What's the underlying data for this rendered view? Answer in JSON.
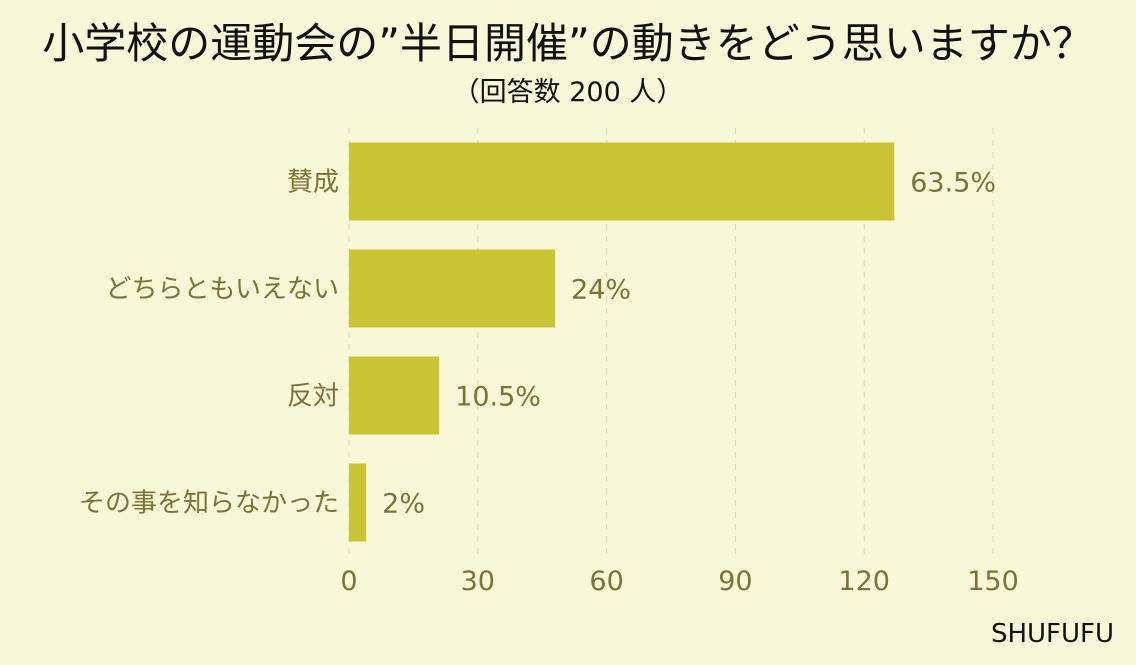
{
  "chart_data": {
    "type": "bar",
    "title": "小学校の運動会の”半日開催”の動きをどう思いますか？",
    "subtitle": "（回答数 200 人）",
    "categories": [
      "賛成",
      "どちらともいえない",
      "反対",
      "その事を知らなかった"
    ],
    "values": [
      127,
      48,
      21,
      4
    ],
    "data_labels": [
      "63.5%",
      "24%",
      "10.5%",
      "2%"
    ],
    "xlabel": "",
    "ylabel": "",
    "xlim": [
      0,
      150
    ],
    "x_ticks": [
      0,
      30,
      60,
      90,
      120,
      150
    ],
    "orientation": "horizontal",
    "grid": "vertical dashed",
    "legend": "none",
    "colors": {
      "bar": "#c9c434",
      "background": "#f8f7d8",
      "label_text": "#7c7336",
      "title_text": "#111111",
      "grid": "#d7d7c0"
    }
  },
  "source": "SHUFUFU"
}
